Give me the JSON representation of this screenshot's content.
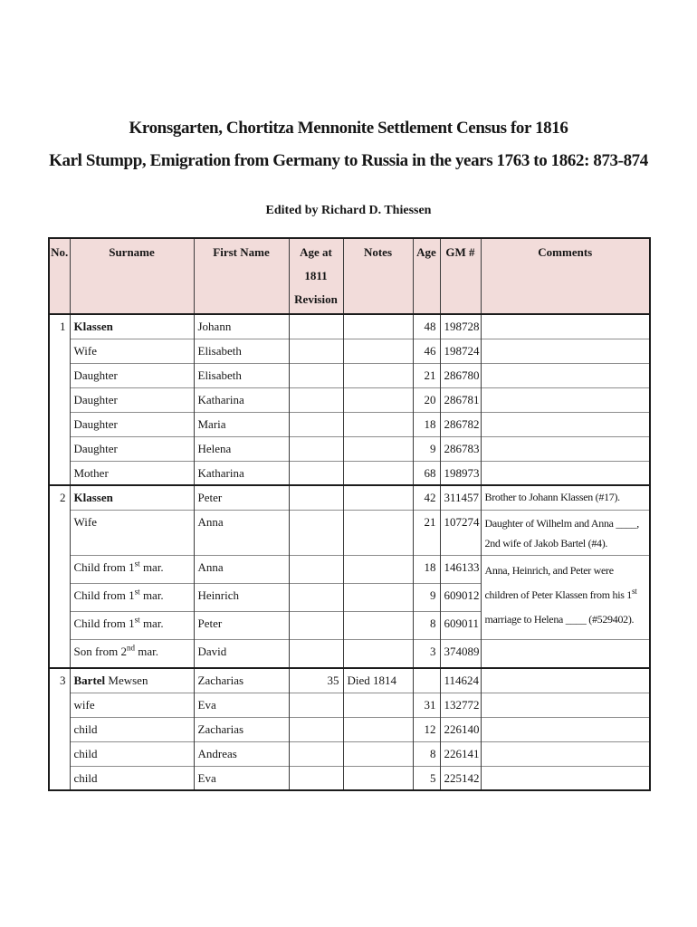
{
  "document": {
    "title_line1": "Kronsgarten, Chortitza Mennonite Settlement Census for 1816",
    "title_line2": "Karl Stumpp, Emigration from Germany to Russia in the years 1763 to 1862: 873-874",
    "edited_by": "Edited by Richard D. Thiessen"
  },
  "table": {
    "header_bg": "#f2dcda",
    "header": {
      "no": "No.",
      "surname": "Surname",
      "first_name": "First Name",
      "age_1811": "Age at 1811 Revision",
      "notes": "Notes",
      "age": "Age",
      "gm": "GM #",
      "comments": "Comments"
    },
    "groups": [
      {
        "no": "1",
        "rows": [
          {
            "relation": "Klassen",
            "first": "Johann",
            "age": "48",
            "gm": "198728"
          },
          {
            "relation": "Wife",
            "first": "Elisabeth",
            "age": "46",
            "gm": "198724"
          },
          {
            "relation": "Daughter",
            "first": "Elisabeth",
            "age": "21",
            "gm": "286780"
          },
          {
            "relation": "Daughter",
            "first": "Katharina",
            "age": "20",
            "gm": "286781"
          },
          {
            "relation": "Daughter",
            "first": "Maria",
            "age": "18",
            "gm": "286782"
          },
          {
            "relation": "Daughter",
            "first": "Helena",
            "age": "9",
            "gm": "286783"
          },
          {
            "relation": "Mother",
            "first": "Katharina",
            "age": "68",
            "gm": "198973"
          }
        ]
      },
      {
        "no": "2",
        "rows": [
          {
            "relation": "Klassen",
            "first": "Peter",
            "age": "42",
            "gm": "311457",
            "comment": "Brother to Johann Klassen (#17)."
          },
          {
            "relation": "Wife",
            "first": "Anna",
            "age": "21",
            "gm": "107274",
            "comment_l1": "Daughter of Wilhelm and Anna ____,",
            "comment_l2": "2nd wife of Jakob Bartel (#4)."
          },
          {
            "relation_pre": "Child from 1",
            "relation_sup": "st",
            "relation_post": " mar.",
            "first": "Anna",
            "age": "18",
            "gm": "146133",
            "comment_l1": "Anna, Heinrich, and Peter were",
            "comment_l2_pre": "children of Peter Klassen from his 1",
            "comment_l2_sup": "st",
            "comment_l3": "marriage to Helena ____ (#529402)."
          },
          {
            "relation_pre": "Child from 1",
            "relation_sup": "st",
            "relation_post": " mar.",
            "first": "Heinrich",
            "age": "9",
            "gm": "609012"
          },
          {
            "relation_pre": "Child from 1",
            "relation_sup": "st",
            "relation_post": " mar.",
            "first": "Peter",
            "age": "8",
            "gm": "609011"
          },
          {
            "relation_pre": "Son from 2",
            "relation_sup": "nd",
            "relation_post": " mar.",
            "first": "David",
            "age": "3",
            "gm": "374089"
          }
        ]
      },
      {
        "no": "3",
        "rows": [
          {
            "surname_bold": "Bartel",
            "surname_rest": " Mewsen",
            "first": "Zacharias",
            "age_1811": "35",
            "notes": "Died 1814",
            "gm": "114624"
          },
          {
            "relation": "wife",
            "first": "Eva",
            "age": "31",
            "gm": "132772"
          },
          {
            "relation": "child",
            "first": "Zacharias",
            "age": "12",
            "gm": "226140"
          },
          {
            "relation": "child",
            "first": "Andreas",
            "age": "8",
            "gm": "226141"
          },
          {
            "relation": "child",
            "first": "Eva",
            "age": "5",
            "gm": "225142"
          }
        ]
      }
    ]
  }
}
